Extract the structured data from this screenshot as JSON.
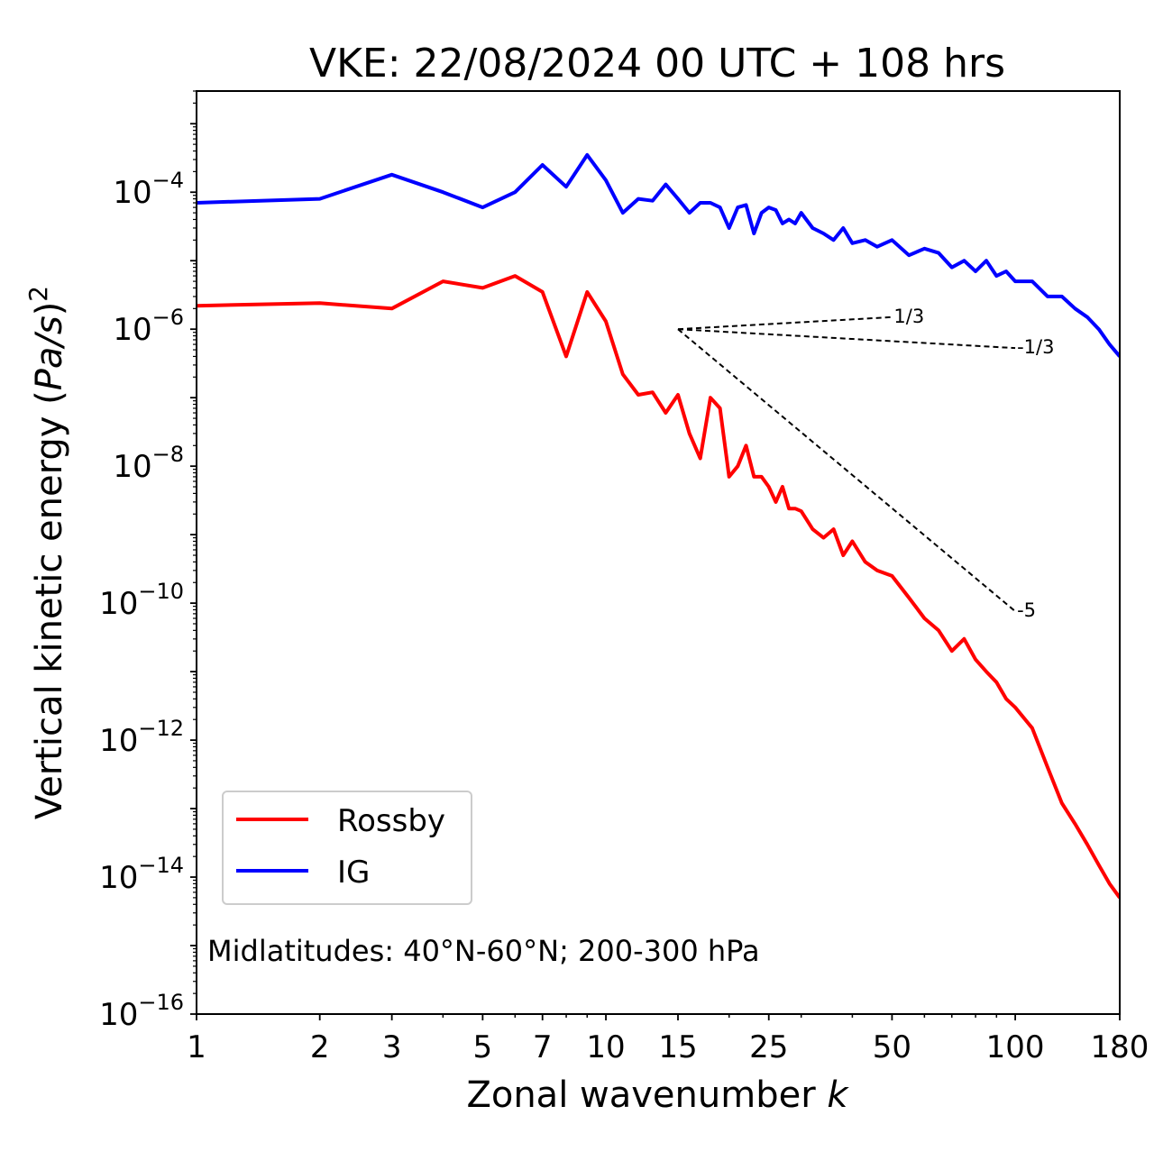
{
  "chart_data": {
    "type": "line",
    "title": "VKE: 22/08/2024 00 UTC + 108 hrs",
    "xlabel": "Zonal wavenumber k",
    "ylabel": "Vertical kinetic energy (Pa/s)²",
    "xscale": "log",
    "yscale": "log",
    "xlim": [
      1,
      180
    ],
    "ylim": [
      1e-16,
      0.003
    ],
    "x_ticks": [
      1,
      2,
      3,
      5,
      7,
      10,
      15,
      25,
      50,
      100,
      180
    ],
    "y_ticks": [
      {
        "value": 1e-16,
        "base": "10",
        "exp": "−16"
      },
      {
        "value": 1e-14,
        "base": "10",
        "exp": "−14"
      },
      {
        "value": 1e-12,
        "base": "10",
        "exp": "−12"
      },
      {
        "value": 1e-10,
        "base": "10",
        "exp": "−10"
      },
      {
        "value": 1e-08,
        "base": "10",
        "exp": "−8"
      },
      {
        "value": 1e-06,
        "base": "10",
        "exp": "−6"
      },
      {
        "value": 0.0001,
        "base": "10",
        "exp": "−4"
      }
    ],
    "grid": false,
    "legend_position": "lower-left",
    "annotation": "Midlatitudes: 40°N-60°N; 200-300 hPa",
    "series": [
      {
        "name": "Rossby",
        "color": "#ff0000",
        "x": [
          1,
          2,
          3,
          4,
          5,
          6,
          7,
          8,
          9,
          10,
          11,
          12,
          13,
          14,
          15,
          16,
          17,
          18,
          19,
          20,
          21,
          22,
          23,
          24,
          25,
          26,
          27,
          28,
          29,
          30,
          32,
          34,
          36,
          38,
          40,
          43,
          46,
          50,
          55,
          60,
          65,
          70,
          75,
          80,
          85,
          90,
          95,
          100,
          110,
          120,
          130,
          140,
          150,
          160,
          170,
          180
        ],
        "values": [
          2.2e-06,
          2.4e-06,
          2e-06,
          5e-06,
          4e-06,
          6e-06,
          3.5e-06,
          4e-07,
          3.5e-06,
          1.3e-06,
          2.2e-07,
          1.1e-07,
          1.2e-07,
          6e-08,
          1.1e-07,
          3e-08,
          1.3e-08,
          1e-07,
          7e-08,
          7e-09,
          1e-08,
          2e-08,
          7e-09,
          7e-09,
          5e-09,
          3e-09,
          5e-09,
          2.4e-09,
          2.4e-09,
          2.2e-09,
          1.2e-09,
          9e-10,
          1.2e-09,
          5e-10,
          8e-10,
          4e-10,
          3e-10,
          2.5e-10,
          1.2e-10,
          6e-11,
          4e-11,
          2e-11,
          3e-11,
          1.5e-11,
          1e-11,
          7e-12,
          4e-12,
          3e-12,
          1.5e-12,
          4e-13,
          1.2e-13,
          6e-14,
          3e-14,
          1.5e-14,
          8e-15,
          5e-15
        ]
      },
      {
        "name": "IG",
        "color": "#0000ff",
        "x": [
          1,
          2,
          3,
          4,
          5,
          6,
          7,
          8,
          9,
          10,
          11,
          12,
          13,
          14,
          15,
          16,
          17,
          18,
          19,
          20,
          21,
          22,
          23,
          24,
          25,
          26,
          27,
          28,
          29,
          30,
          32,
          34,
          36,
          38,
          40,
          43,
          46,
          50,
          55,
          60,
          65,
          70,
          75,
          80,
          85,
          90,
          95,
          100,
          110,
          120,
          130,
          140,
          150,
          160,
          170,
          180
        ],
        "values": [
          7e-05,
          8e-05,
          0.00018,
          0.0001,
          6e-05,
          0.0001,
          0.00025,
          0.00012,
          0.00035,
          0.00015,
          5e-05,
          8e-05,
          7.5e-05,
          0.00013,
          8e-05,
          5e-05,
          7e-05,
          7e-05,
          6e-05,
          3e-05,
          6e-05,
          6.5e-05,
          2.5e-05,
          5e-05,
          6e-05,
          5.5e-05,
          3.5e-05,
          4e-05,
          3.5e-05,
          5e-05,
          3e-05,
          2.5e-05,
          2e-05,
          3e-05,
          1.8e-05,
          2e-05,
          1.6e-05,
          2e-05,
          1.2e-05,
          1.5e-05,
          1.3e-05,
          8e-06,
          1e-05,
          7e-06,
          1e-05,
          6e-06,
          7e-06,
          5e-06,
          5e-06,
          3e-06,
          3e-06,
          2e-06,
          1.5e-06,
          1e-06,
          6e-07,
          4e-07
        ]
      }
    ],
    "reference_lines": [
      {
        "label": "1/3",
        "slope": 0.3333,
        "x": [
          15,
          50
        ],
        "y": [
          1e-06,
          1.5e-06
        ]
      },
      {
        "label": "-1/3",
        "slope": -0.3333,
        "x": [
          15,
          100
        ],
        "y": [
          1e-06,
          5.3e-07
        ]
      },
      {
        "label": "-5",
        "slope": -5,
        "x": [
          15,
          100
        ],
        "y": [
          1e-06,
          7.6e-11
        ]
      }
    ]
  }
}
